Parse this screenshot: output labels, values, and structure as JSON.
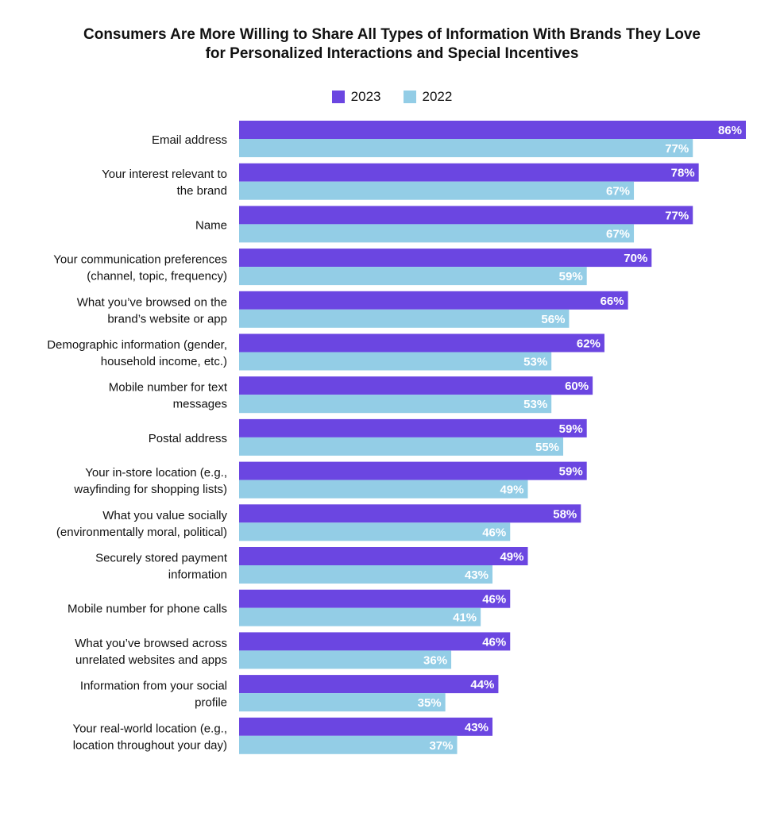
{
  "chart_data": {
    "type": "bar",
    "orientation": "horizontal",
    "title": [
      "Consumers Are More Willing to Share All Types of Information With Brands They Love",
      "for Personalized Interactions and Special Incentives"
    ],
    "legend_position": "top",
    "grid": false,
    "xlim": [
      0,
      86
    ],
    "categories": [
      [
        "Email address"
      ],
      [
        "Your interest relevant to",
        "the brand"
      ],
      [
        "Name"
      ],
      [
        "Your communication preferences",
        "(channel, topic, frequency)"
      ],
      [
        "What you’ve browsed on the",
        "brand’s website or app"
      ],
      [
        "Demographic information (gender,",
        "household income, etc.)"
      ],
      [
        "Mobile number for text",
        "messages"
      ],
      [
        "Postal address"
      ],
      [
        "Your in-store location (e.g.,",
        "wayfinding for shopping lists)"
      ],
      [
        "What you value socially",
        "(environmentally moral, political)"
      ],
      [
        "Securely stored payment",
        "information"
      ],
      [
        "Mobile number for phone calls"
      ],
      [
        "What you’ve browsed across",
        "unrelated websites and apps"
      ],
      [
        "Information from your social",
        "profile"
      ],
      [
        "Your real-world location (e.g.,",
        "location throughout your day)"
      ]
    ],
    "series": [
      {
        "name": "2023",
        "color": "#6B46E1",
        "values": [
          86,
          78,
          77,
          70,
          66,
          62,
          60,
          59,
          59,
          58,
          49,
          46,
          46,
          44,
          43
        ]
      },
      {
        "name": "2022",
        "color": "#93CDE6",
        "values": [
          77,
          67,
          67,
          59,
          56,
          53,
          53,
          55,
          49,
          46,
          43,
          41,
          36,
          35,
          37
        ]
      }
    ],
    "value_suffix": "%"
  }
}
